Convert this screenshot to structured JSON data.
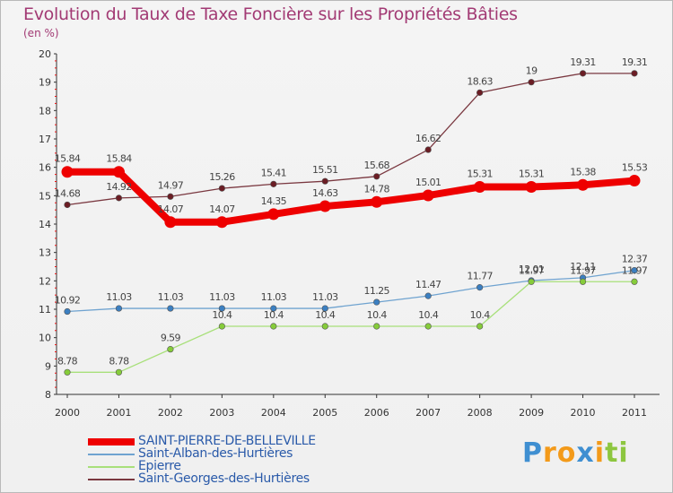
{
  "title": "Evolution du Taux de Taxe Foncière sur les Propriétés Bâties",
  "unit_label": "(en %)",
  "brand": {
    "text": "Proxiti",
    "letter_colors": [
      "#3f8fd1",
      "#f39a1a",
      "#f39a1a",
      "#3f8fd1",
      "#f39a1a",
      "#8dc63f",
      "#8dc63f"
    ]
  },
  "chart_data": {
    "type": "line",
    "x": [
      "2000",
      "2001",
      "2002",
      "2003",
      "2004",
      "2005",
      "2006",
      "2007",
      "2008",
      "2009",
      "2010",
      "2011"
    ],
    "ylim": [
      8,
      20
    ],
    "yticks": [
      "8",
      "9",
      "10",
      "11",
      "12",
      "13",
      "14",
      "15",
      "16",
      "17",
      "18",
      "19",
      "20"
    ],
    "grid": false,
    "legend_position": "bottom-left",
    "series": [
      {
        "name": "SAINT-PIERRE-DE-BELLEVILLE",
        "color": "#ee0000",
        "marker_color": "#ee0000",
        "emphasis": true,
        "values": [
          15.84,
          15.84,
          14.07,
          14.07,
          14.35,
          14.63,
          14.78,
          15.01,
          15.31,
          15.31,
          15.38,
          15.53
        ],
        "labels": [
          "15.84",
          "15.84",
          "14.07",
          "14.07",
          "14.35",
          "14.63",
          "14.78",
          "15.01",
          "15.31",
          "15.31",
          "15.38",
          "15.53"
        ]
      },
      {
        "name": "Saint-Alban-des-Hurtières",
        "color": "#6fa3d0",
        "marker_color": "#3b7fc1",
        "emphasis": false,
        "values": [
          10.92,
          11.03,
          11.03,
          11.03,
          11.03,
          11.03,
          11.25,
          11.47,
          11.77,
          12.01,
          12.11,
          12.37
        ],
        "labels": [
          "10.92",
          "11.03",
          "11.03",
          "11.03",
          "11.03",
          "11.03",
          "11.25",
          "11.47",
          "11.77",
          "12.01",
          "12.11",
          "12.37"
        ]
      },
      {
        "name": "Epierre",
        "color": "#a8e07a",
        "marker_color": "#86cc3a",
        "emphasis": false,
        "values": [
          8.78,
          8.78,
          9.59,
          10.4,
          10.4,
          10.4,
          10.4,
          10.4,
          10.4,
          11.97,
          11.97,
          11.97
        ],
        "labels": [
          "8.78",
          "8.78",
          "9.59",
          "10.4",
          "10.4",
          "10.4",
          "10.4",
          "10.4",
          "10.4",
          "11.97",
          "11.97",
          "11.97"
        ]
      },
      {
        "name": "Saint-Georges-des-Hurtières",
        "color": "#7a3840",
        "marker_color": "#6b1d24",
        "emphasis": false,
        "values": [
          14.68,
          14.92,
          14.97,
          15.26,
          15.41,
          15.51,
          15.68,
          16.62,
          18.63,
          19,
          19.31,
          19.31
        ],
        "labels": [
          "14.68",
          "14.92",
          "14.97",
          "15.26",
          "15.41",
          "15.51",
          "15.68",
          "16.62",
          "18.63",
          "19",
          "19.31",
          "19.31"
        ]
      }
    ]
  }
}
